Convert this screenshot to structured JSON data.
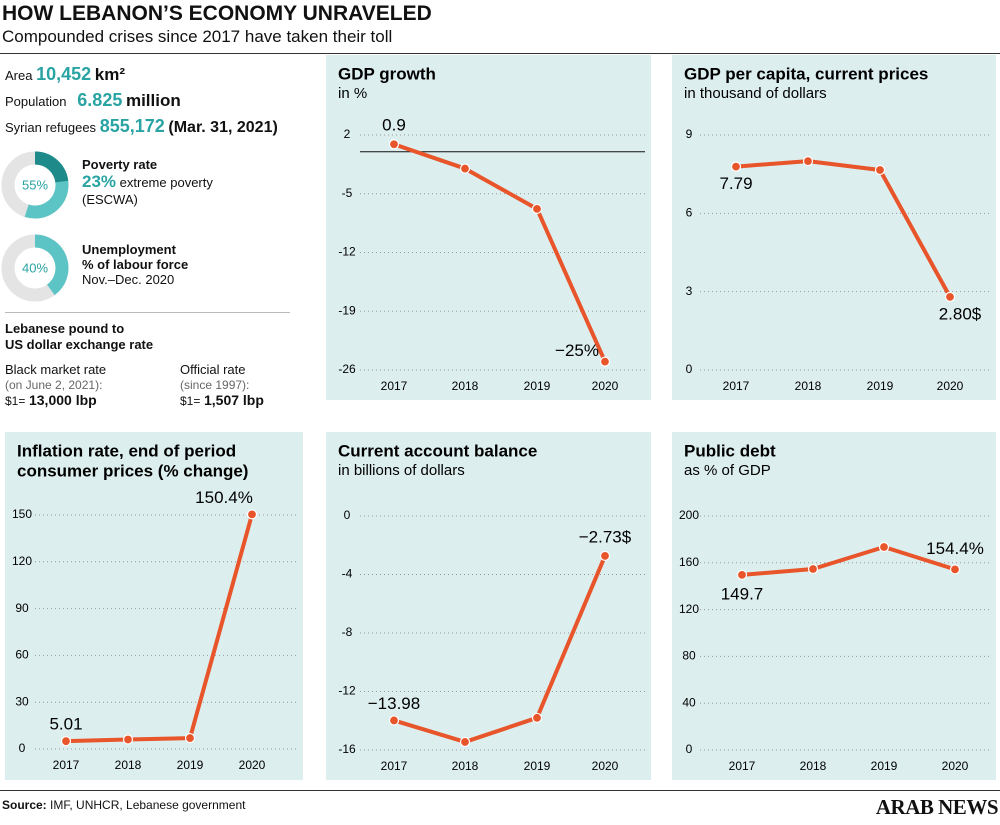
{
  "header": {
    "title": "HOW LEBANON’S ECONOMY UNRAVELED",
    "subtitle": "Compounded crises since 2017 have taken their toll"
  },
  "facts": [
    {
      "label": "Area",
      "value": "10,452",
      "unit": "km²"
    },
    {
      "label": "Population",
      "value": "6.825",
      "unit": "million"
    },
    {
      "label": "Syrian refugees",
      "value": "855,172",
      "unit": "(Mar. 31, 2021)"
    }
  ],
  "donuts": [
    {
      "value": 55,
      "value_label": "55%",
      "inner_value": 23,
      "title": "Poverty rate",
      "highlight": "23%",
      "text": "extreme poverty",
      "note": "(ESCWA)"
    },
    {
      "value": 40,
      "value_label": "40%",
      "title": "Unemployment",
      "text": "% of labour force",
      "note": "Nov.–Dec. 2020"
    }
  ],
  "exchange": {
    "heading": [
      "Lebanese pound to",
      "US dollar exchange rate"
    ],
    "rates": [
      {
        "title": "Black market rate",
        "note": "(on June 2, 2021):",
        "prefix": "$1=",
        "value": "13,000 lbp"
      },
      {
        "title": "Official rate",
        "note": "(since 1997):",
        "prefix": "$1=",
        "value": "1,507 lbp"
      }
    ]
  },
  "chart_data": [
    {
      "type": "line",
      "title": "GDP growth",
      "subtitle": "in %",
      "categories": [
        "2017",
        "2018",
        "2019",
        "2020"
      ],
      "values": [
        0.9,
        -2.0,
        -6.8,
        -25
      ],
      "value_labels": [
        "0.9",
        null,
        null,
        "−25%"
      ],
      "color": "#e8552a",
      "ylim": [
        -26,
        2
      ],
      "yticks": [
        2,
        -5,
        -12,
        -19,
        -26
      ],
      "grid": true,
      "zero_line": true
    },
    {
      "type": "line",
      "title": "GDP per capita, current prices",
      "subtitle": "in thousand of dollars",
      "categories": [
        "2017",
        "2018",
        "2019",
        "2020"
      ],
      "values": [
        7.79,
        8.0,
        7.66,
        2.8
      ],
      "value_labels": [
        "7.79",
        null,
        null,
        "2.80$"
      ],
      "color": "#e8552a",
      "ylim": [
        0,
        9
      ],
      "yticks": [
        9,
        6,
        3,
        0
      ],
      "grid": true
    },
    {
      "type": "line",
      "title": [
        "Inflation rate, end of period",
        "consumer prices (% change)"
      ],
      "categories": [
        "2017",
        "2018",
        "2019",
        "2020"
      ],
      "values": [
        5.01,
        6.1,
        7.0,
        150.4
      ],
      "value_labels": [
        "5.01",
        null,
        null,
        "150.4%"
      ],
      "color": "#e8552a",
      "ylim": [
        0,
        150
      ],
      "yticks": [
        150,
        120,
        90,
        60,
        30,
        0
      ],
      "grid": true
    },
    {
      "type": "line",
      "title": "Current account balance",
      "subtitle": "in billions of dollars",
      "categories": [
        "2017",
        "2018",
        "2019",
        "2020"
      ],
      "values": [
        -13.98,
        -15.45,
        -13.8,
        -2.73
      ],
      "value_labels": [
        "−13.98",
        null,
        null,
        "−2.73$"
      ],
      "color": "#e8552a",
      "ylim": [
        -16,
        0
      ],
      "yticks": [
        0,
        -4,
        -8,
        -12,
        -16
      ],
      "grid": true
    },
    {
      "type": "line",
      "title": "Public debt",
      "subtitle": "as % of GDP",
      "categories": [
        "2017",
        "2018",
        "2019",
        "2020"
      ],
      "values": [
        149.7,
        154.7,
        173.5,
        154.4
      ],
      "value_labels": [
        "149.7",
        null,
        null,
        "154.4%"
      ],
      "color": "#e8552a",
      "ylim": [
        0,
        200
      ],
      "yticks": [
        200,
        160,
        120,
        80,
        40,
        0
      ],
      "grid": true
    }
  ],
  "footer": {
    "source_label": "Source:",
    "source": "IMF, UNHCR, Lebanese government",
    "brand": "ARAB NEWS"
  }
}
